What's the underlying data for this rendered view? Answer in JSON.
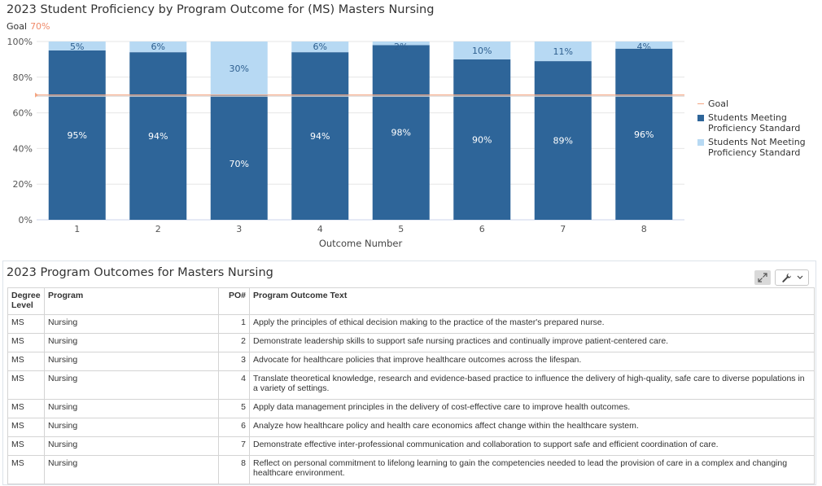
{
  "chart": {
    "title": "2023 Student Proficiency by Program Outcome for (MS) Masters Nursing",
    "goal_label": "Goal",
    "goal_value": "70%",
    "legend": [
      {
        "label": "Goal",
        "color": "#f4a582"
      },
      {
        "label": "Students Meeting Proficiency Standard",
        "color": "#2e6599"
      },
      {
        "label": "Students Not Meeting Proficiency Standard",
        "color": "#b7d9f3"
      }
    ]
  },
  "chart_data": {
    "type": "bar",
    "stacked": true,
    "categories": [
      "1",
      "2",
      "3",
      "4",
      "5",
      "6",
      "7",
      "8"
    ],
    "series": [
      {
        "name": "Students Meeting Proficiency Standard",
        "values": [
          95,
          94,
          70,
          94,
          98,
          90,
          89,
          96
        ],
        "color": "#2e6599"
      },
      {
        "name": "Students Not Meeting Proficiency Standard",
        "values": [
          5,
          6,
          30,
          6,
          2,
          10,
          11,
          4
        ],
        "color": "#b7d9f3"
      }
    ],
    "goal": 70,
    "xlabel": "Outcome Number",
    "ylabel": "",
    "ylim": [
      0,
      100
    ],
    "yticks": [
      "0%",
      "20%",
      "40%",
      "60%",
      "80%",
      "100%"
    ],
    "grid": true,
    "legend_position": "right"
  },
  "table": {
    "title": "2023 Program Outcomes for Masters Nursing",
    "headers": [
      "Degree Level",
      "Program",
      "PO#",
      "Program Outcome Text"
    ],
    "rows": [
      {
        "degree": "MS",
        "program": "Nursing",
        "po": "1",
        "text": "Apply the principles of ethical decision making to the practice of the master's prepared nurse."
      },
      {
        "degree": "MS",
        "program": "Nursing",
        "po": "2",
        "text": "Demonstrate leadership skills to support safe nursing practices and continually improve patient-centered care."
      },
      {
        "degree": "MS",
        "program": "Nursing",
        "po": "3",
        "text": "Advocate for healthcare policies that improve healthcare outcomes across the lifespan."
      },
      {
        "degree": "MS",
        "program": "Nursing",
        "po": "4",
        "text": "Translate theoretical knowledge, research and evidence-based practice to influence the delivery of high-quality, safe care to diverse populations in a variety of settings."
      },
      {
        "degree": "MS",
        "program": "Nursing",
        "po": "5",
        "text": "Apply data management principles in the delivery of cost-effective care to improve health outcomes."
      },
      {
        "degree": "MS",
        "program": "Nursing",
        "po": "6",
        "text": "Analyze how healthcare policy and health care economics affect change within the healthcare system."
      },
      {
        "degree": "MS",
        "program": "Nursing",
        "po": "7",
        "text": "Demonstrate effective inter-professional communication and collaboration to support safe and efficient coordination of care."
      },
      {
        "degree": "MS",
        "program": "Nursing",
        "po": "8",
        "text": "Reflect on personal commitment to lifelong learning to gain the competencies needed to lead the provision of care in a complex and changing healthcare environment."
      }
    ]
  },
  "toolbar": {
    "expand_icon": "expand-icon",
    "tools_icon": "wrench-icon",
    "dropdown_icon": "chevron-down-icon"
  }
}
